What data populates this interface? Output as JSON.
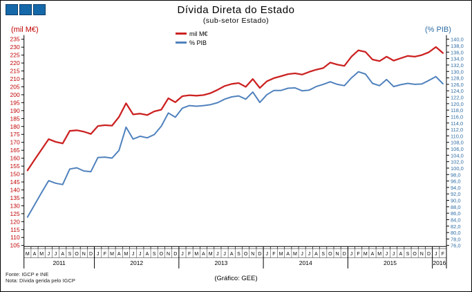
{
  "header": {
    "title": "Dívida Direta do Estado",
    "subtitle": "(sub-setor Estado)"
  },
  "left_axis": {
    "label": "(mil M€)",
    "min": 105,
    "max": 235,
    "step": 5,
    "text_color": "#C00000"
  },
  "right_axis": {
    "label": "(% PIB)",
    "min": 76,
    "max": 140,
    "step": 2,
    "text_color": "#2E6DA4"
  },
  "legend": [
    {
      "label": "mil M€",
      "color": "#CC2222"
    },
    {
      "label": "% PIB",
      "color": "#4F81BD"
    }
  ],
  "footer": {
    "source": "Fonte: IGCP e INE",
    "note": "Nota: Dívida gerida pelo IGCP",
    "credit": "(Gráfico:  GEE)"
  },
  "chart_data": {
    "type": "line",
    "x_months": [
      "M",
      "A",
      "M",
      "J",
      "J",
      "A",
      "S",
      "O",
      "N",
      "D",
      "J",
      "F",
      "M",
      "A",
      "M",
      "J",
      "J",
      "A",
      "S",
      "O",
      "N",
      "D",
      "J",
      "F",
      "M",
      "A",
      "M",
      "J",
      "J",
      "A",
      "S",
      "O",
      "N",
      "D",
      "J",
      "F",
      "M",
      "A",
      "M",
      "J",
      "J",
      "A",
      "S",
      "O",
      "N",
      "D",
      "J",
      "F",
      "M",
      "A",
      "M",
      "J",
      "J",
      "A",
      "S",
      "O",
      "N",
      "D",
      "J",
      "F"
    ],
    "years": [
      {
        "label": "2011",
        "months": 10
      },
      {
        "label": "2012",
        "months": 12
      },
      {
        "label": "2013",
        "months": 12
      },
      {
        "label": "2014",
        "months": 12
      },
      {
        "label": "2015",
        "months": 12
      },
      {
        "label": "2016",
        "months": 2
      }
    ],
    "series": [
      {
        "name": "mil M€",
        "axis": "left",
        "color": "#CC2222",
        "values": [
          152.3,
          159.0,
          165.5,
          172.0,
          170.3,
          169.3,
          177.2,
          177.6,
          176.7,
          175.3,
          180.3,
          180.8,
          180.5,
          186.0,
          194.6,
          187.6,
          188.1,
          187.2,
          189.5,
          190.6,
          197.8,
          195.3,
          199.1,
          199.7,
          199.4,
          199.8,
          201.0,
          203.1,
          205.5,
          206.8,
          207.4,
          205.0,
          209.9,
          204.3,
          208.5,
          210.5,
          211.7,
          213.0,
          213.5,
          212.7,
          214.4,
          215.8,
          216.8,
          220.3,
          219.0,
          218.2,
          224.0,
          228.0,
          227.0,
          222.2,
          221.2,
          224.0,
          221.5,
          223.0,
          224.5,
          224.0,
          225.0,
          226.8,
          230.1,
          226.3
        ]
      },
      {
        "name": "% PIB",
        "axis": "right",
        "color": "#4F81BD",
        "values": [
          84.8,
          88.6,
          92.4,
          96.1,
          95.3,
          94.9,
          99.7,
          100.1,
          99.1,
          98.9,
          103.3,
          103.4,
          103.1,
          105.5,
          112.7,
          109.0,
          109.9,
          109.4,
          110.4,
          113.0,
          117.1,
          115.8,
          118.6,
          119.4,
          119.2,
          119.4,
          119.7,
          120.3,
          121.4,
          122.1,
          122.4,
          121.4,
          123.6,
          120.4,
          122.8,
          124.1,
          124.1,
          124.8,
          124.9,
          124.0,
          124.2,
          125.3,
          126.0,
          126.8,
          126.0,
          125.6,
          128.0,
          129.9,
          129.2,
          126.3,
          125.6,
          127.5,
          125.3,
          125.9,
          126.3,
          126.0,
          126.1,
          127.2,
          128.4,
          126.2
        ]
      }
    ],
    "left_ylim": [
      105,
      235
    ],
    "right_ylim": [
      76,
      140
    ],
    "grid": false,
    "legend_position": "top-center"
  }
}
